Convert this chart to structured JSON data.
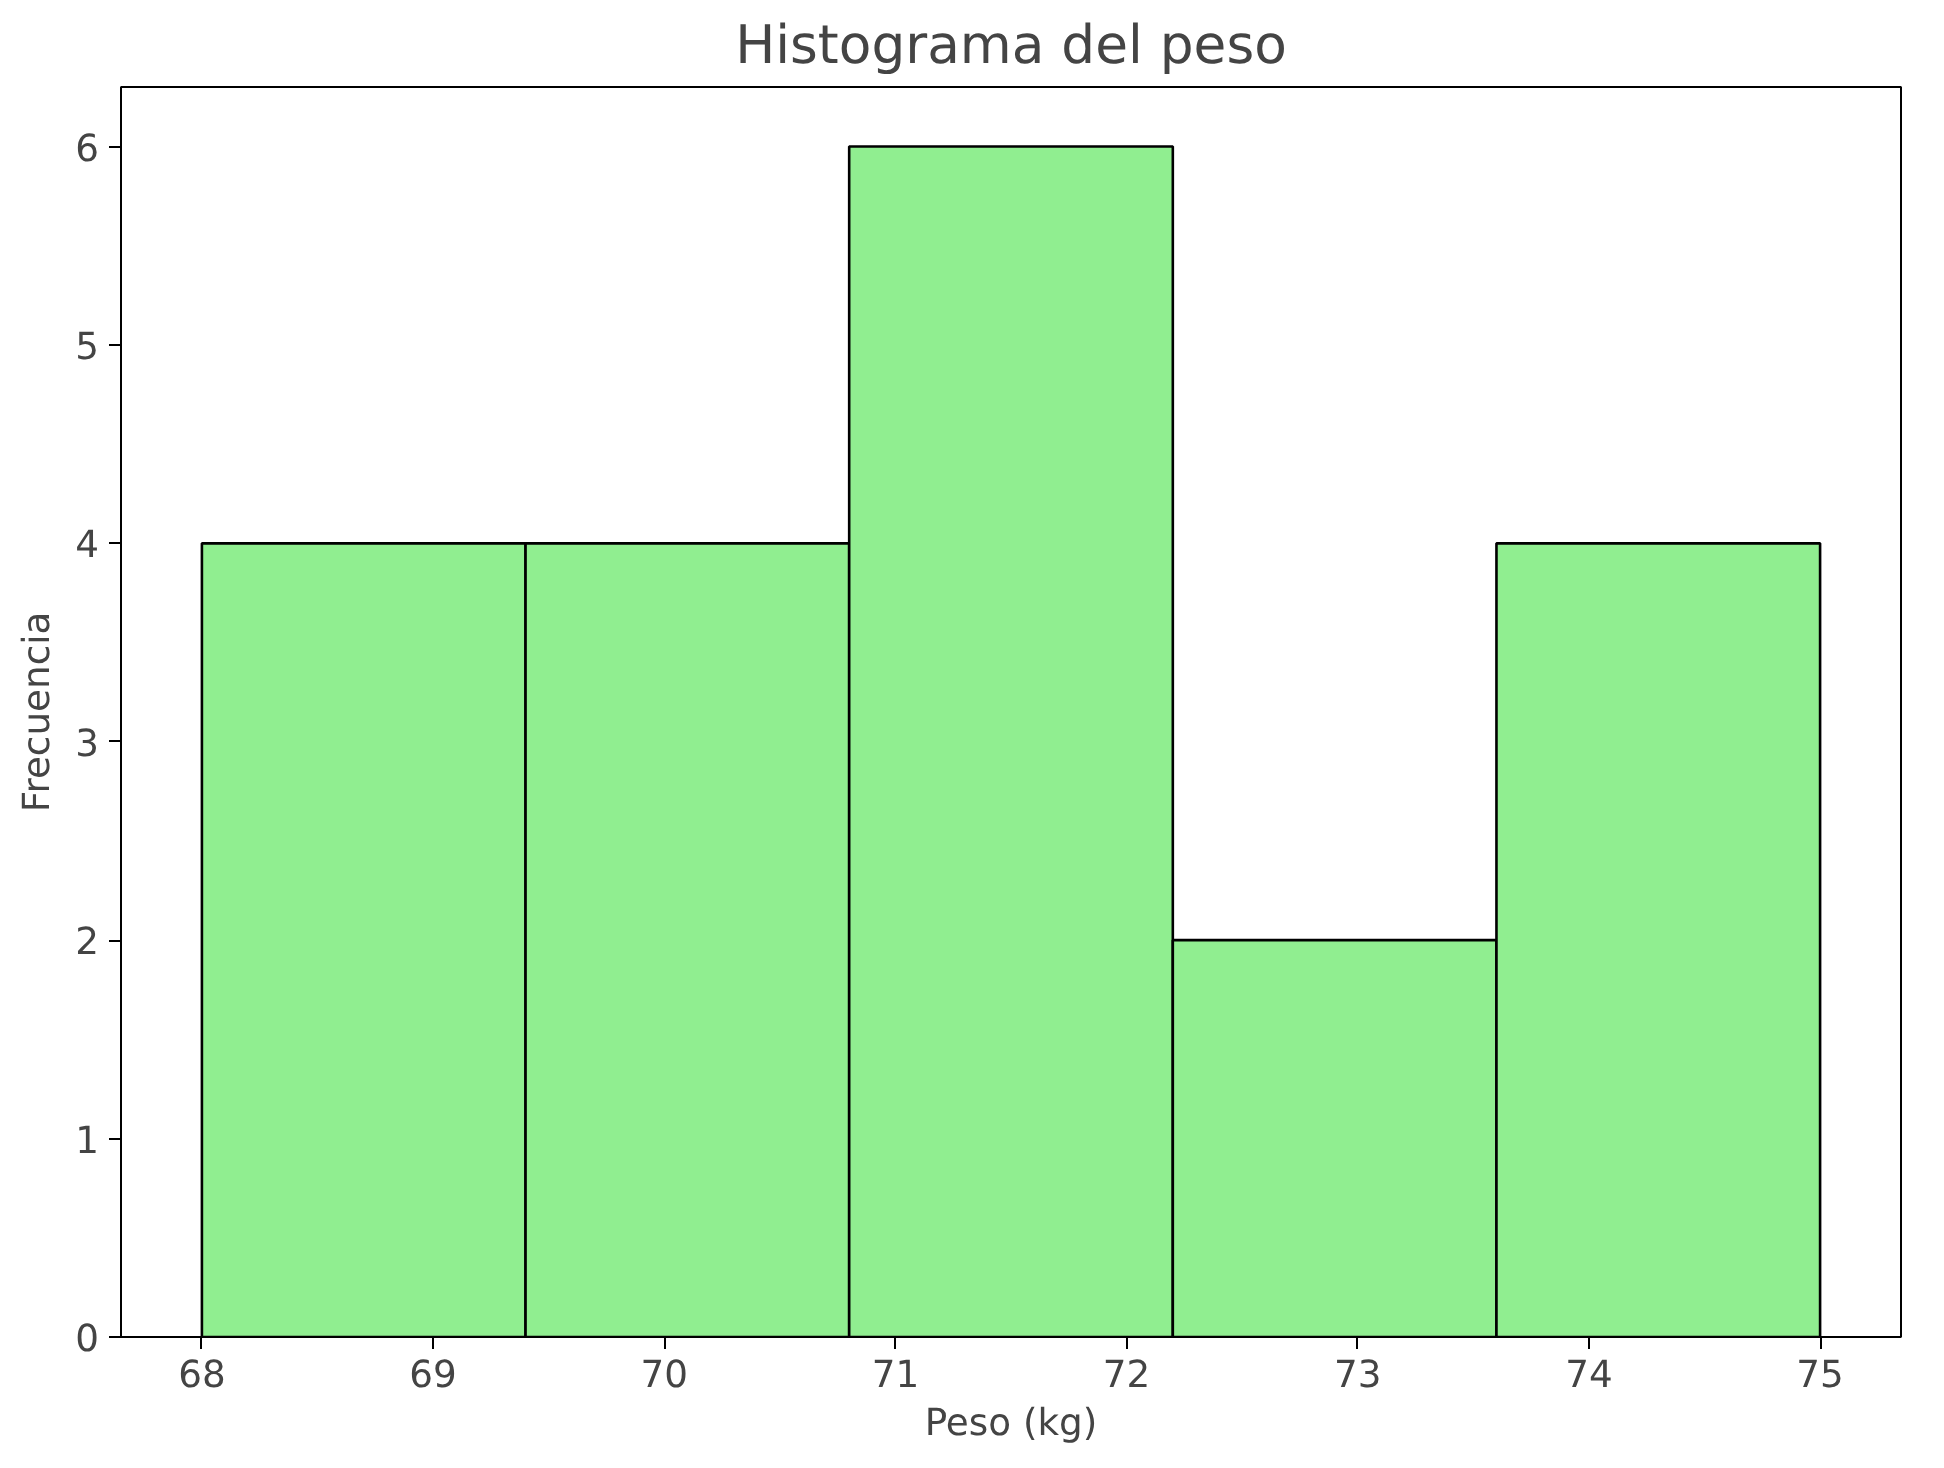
{
  "chart_data": {
    "type": "histogram",
    "title": "Histograma del peso",
    "xlabel": "Peso (kg)",
    "ylabel": "Frecuencia",
    "bins": [
      68,
      69.4,
      70.8,
      72.2,
      73.6,
      75
    ],
    "values": [
      4,
      4,
      6,
      2,
      4
    ],
    "color": "#90ee90",
    "xlim": [
      67.65,
      75.35
    ],
    "ylim": [
      0,
      6.3
    ],
    "xticks": [
      68,
      69,
      70,
      71,
      72,
      73,
      74,
      75
    ],
    "yticks": [
      0,
      1,
      2,
      3,
      4,
      5,
      6
    ],
    "grid": false
  }
}
